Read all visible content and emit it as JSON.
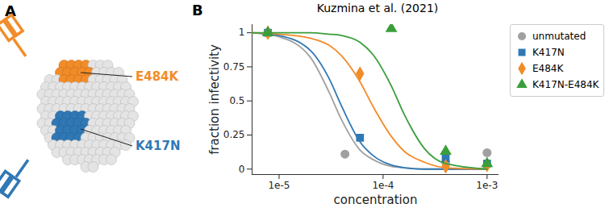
{
  "figure": {
    "label": "A",
    "mutations": [
      {
        "text": "E484K",
        "color": "#f28c28"
      },
      {
        "text": "K417N",
        "color": "#2f78b5"
      }
    ]
  },
  "chart_data": {
    "type": "line",
    "panel_label": "B",
    "title": "Kuzmina et al. (2021)",
    "x_label": "concentration",
    "y_label": "fraction infectivity",
    "log": "x",
    "xlim": [
      5.5e-06,
      0.0013
    ],
    "xticks": [
      {
        "value": 1e-05,
        "label": "1e-5"
      },
      {
        "value": 0.0001,
        "label": "1e-4"
      },
      {
        "value": 0.001,
        "label": "1e-3"
      }
    ],
    "ylim": [
      -0.04,
      1.06
    ],
    "yticks": [
      0,
      0.25,
      0.5,
      0.75,
      1
    ],
    "legend": "right",
    "series": [
      {
        "name": "unmutated",
        "color": "#a0a0a0",
        "marker": "circle",
        "points": {
          "x": [
            7.8e-06,
            4.3e-05,
            0.0004,
            0.001
          ],
          "y": [
            1,
            0.11,
            0.05,
            0.12
          ]
        },
        "fit": {
          "x": [
            5.5e-06,
            1e-05,
            2e-05,
            3e-05,
            4e-05,
            6e-05,
            8e-05,
            0.00012,
            0.00016,
            0.00025,
            0.0004,
            0.001
          ],
          "y": [
            1,
            0.97,
            0.82,
            0.57,
            0.36,
            0.14,
            0.07,
            0.02,
            0.01,
            0,
            0,
            0
          ]
        }
      },
      {
        "name": "K417N",
        "color": "#2f78b5",
        "marker": "square",
        "points": {
          "x": [
            7.8e-06,
            6e-05,
            0.0004,
            0.001
          ],
          "y": [
            1,
            0.23,
            0.08,
            0.04
          ]
        },
        "fit": {
          "x": [
            5.5e-06,
            1e-05,
            2e-05,
            3e-05,
            4e-05,
            6e-05,
            8e-05,
            0.00012,
            0.00016,
            0.00025,
            0.0004,
            0.001
          ],
          "y": [
            1,
            0.98,
            0.87,
            0.67,
            0.46,
            0.2,
            0.1,
            0.03,
            0.01,
            0,
            0,
            0
          ]
        }
      },
      {
        "name": "E484K",
        "color": "#f28c28",
        "marker": "diamond",
        "points": {
          "x": [
            7.8e-06,
            6e-05,
            0.0004,
            0.001
          ],
          "y": [
            1,
            0.7,
            0.02,
            0.03
          ]
        },
        "fit": {
          "x": [
            5.5e-06,
            1e-05,
            2e-05,
            3e-05,
            4e-05,
            6e-05,
            8e-05,
            0.00012,
            0.00016,
            0.00025,
            0.0004,
            0.001
          ],
          "y": [
            1,
            0.99,
            0.96,
            0.91,
            0.83,
            0.64,
            0.46,
            0.24,
            0.13,
            0.05,
            0.01,
            0
          ]
        }
      },
      {
        "name": "K417N-E484K",
        "color": "#3a9e3a",
        "marker": "triangle",
        "points": {
          "x": [
            7.8e-06,
            0.00012,
            0.0004,
            0.001
          ],
          "y": [
            1,
            1.03,
            0.13,
            0.04
          ]
        },
        "fit": {
          "x": [
            5.5e-06,
            1e-05,
            2e-05,
            3e-05,
            4e-05,
            6e-05,
            8e-05,
            0.00012,
            0.00016,
            0.00025,
            0.0004,
            0.001
          ],
          "y": [
            1,
            1,
            1,
            0.99,
            0.98,
            0.93,
            0.84,
            0.61,
            0.4,
            0.15,
            0.04,
            0
          ]
        }
      }
    ]
  }
}
